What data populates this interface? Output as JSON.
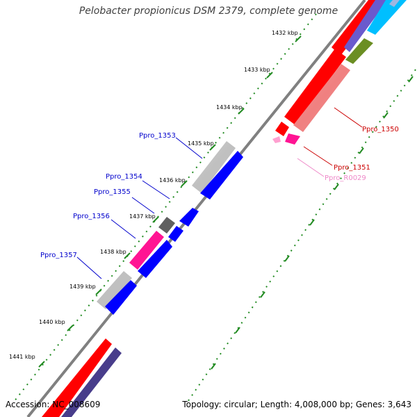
{
  "title": "Pelobacter propionicus DSM 2379, complete genome",
  "accession": "Accession: NC_008609",
  "summary": "Topology: circular; Length: 4,008,000 bp; Genes: 3,643",
  "ticks": [
    "1432 kbp",
    "1433 kbp",
    "1434 kbp",
    "1435 kbp",
    "1436 kbp",
    "1437 kbp",
    "1438 kbp",
    "1439 kbp",
    "1440 kbp",
    "1441 kbp"
  ],
  "gene_labels": [
    {
      "name": "Ppro_1350",
      "color": "#cc0000"
    },
    {
      "name": "Ppro_1351",
      "color": "#cc0000"
    },
    {
      "name": "Ppro_R0029",
      "color": "#ee88c8"
    },
    {
      "name": "Ppro_1353",
      "color": "#0000cc"
    },
    {
      "name": "Ppro_1354",
      "color": "#0000cc"
    },
    {
      "name": "Ppro_1355",
      "color": "#0000cc"
    },
    {
      "name": "Ppro_1356",
      "color": "#0000cc"
    },
    {
      "name": "Ppro_1357",
      "color": "#0000cc"
    }
  ],
  "colors": {
    "cds_red": "#ff0000",
    "cds_salmon": "#f08080",
    "cds_blue": "#0000ff",
    "cds_magenta": "#ff1493",
    "cds_gray": "#c0c0c0",
    "cds_darkgray": "#606060",
    "cds_cyan": "#00bfff",
    "cds_olive": "#6b8e23",
    "cds_slate": "#483d8b",
    "rrna_pink": "#ffa0d0",
    "backbone": "#808080",
    "tick": "#228b22"
  }
}
